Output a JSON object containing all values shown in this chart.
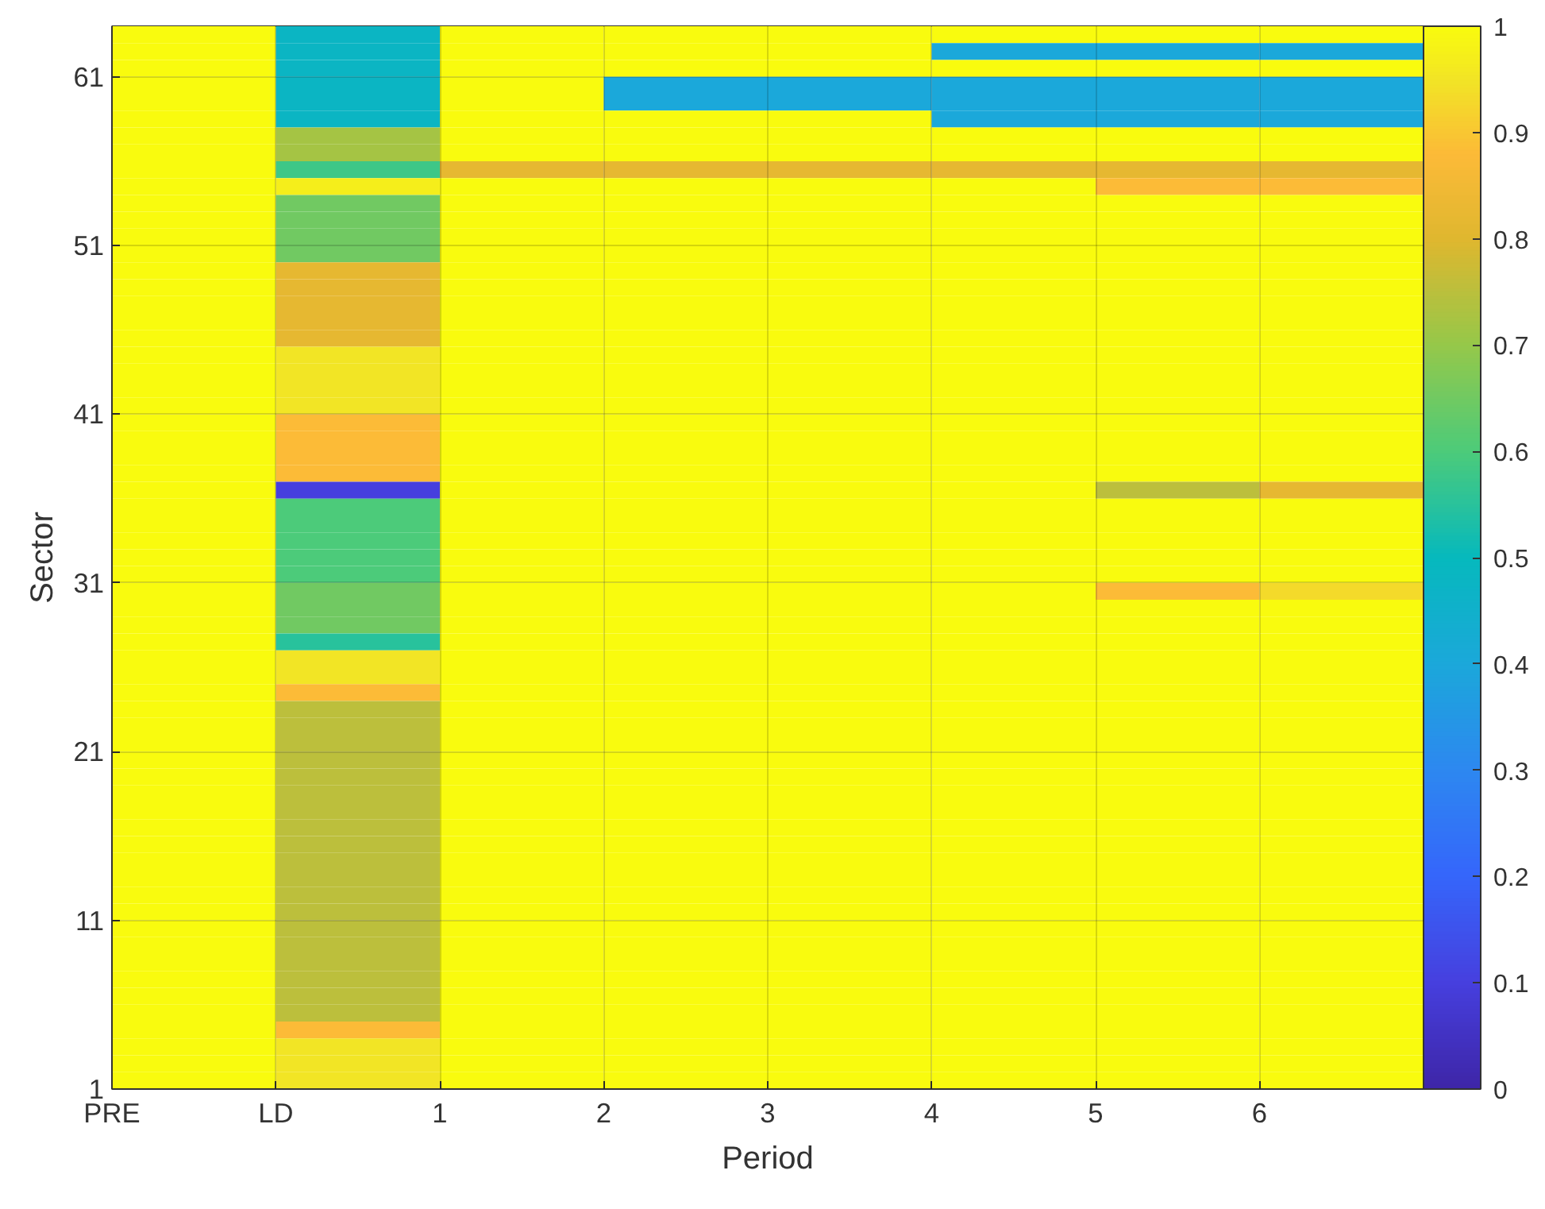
{
  "chart_data": {
    "type": "heatmap",
    "xlabel": "Period",
    "ylabel": "Sector",
    "xlim": [
      -1,
      7
    ],
    "xticks": [
      {
        "value": -1,
        "label": "PRE"
      },
      {
        "value": 0,
        "label": "LD"
      },
      1,
      2,
      3,
      4,
      5,
      6
    ],
    "ylim": [
      1,
      64
    ],
    "yticks": [
      1,
      11,
      21,
      31,
      41,
      51,
      61
    ],
    "clim": [
      0,
      1
    ],
    "cticks": [
      0,
      0.1,
      0.2,
      0.3,
      0.4,
      0.5,
      0.6,
      0.7,
      0.8,
      0.9,
      1
    ],
    "grid": true,
    "cells": [
      [
        1,
        0.48,
        1,
        1,
        1,
        1,
        1,
        1
      ],
      [
        1,
        0.48,
        1,
        1,
        1,
        0.4,
        0.4,
        0.4
      ],
      [
        1,
        0.48,
        1,
        1,
        1,
        1,
        1,
        1
      ],
      [
        1,
        0.48,
        1,
        0.4,
        0.4,
        0.4,
        0.4,
        0.4
      ],
      [
        1,
        0.48,
        1,
        0.4,
        0.4,
        0.4,
        0.4,
        0.4
      ],
      [
        1,
        0.48,
        1,
        1,
        1,
        0.4,
        0.4,
        0.4
      ],
      [
        1,
        0.72,
        1,
        1,
        1,
        1,
        1,
        1
      ],
      [
        1,
        0.72,
        1,
        1,
        1,
        1,
        1,
        1
      ],
      [
        1,
        0.58,
        0.82,
        0.82,
        0.82,
        0.82,
        0.82,
        0.82
      ],
      [
        1,
        0.97,
        1,
        1,
        1,
        1,
        0.88,
        0.88
      ],
      [
        1,
        0.65,
        1,
        1,
        1,
        1,
        1,
        1
      ],
      [
        1,
        0.65,
        1,
        1,
        1,
        1,
        1,
        1
      ],
      [
        1,
        0.65,
        1,
        1,
        1,
        1,
        1,
        1
      ],
      [
        1,
        0.65,
        1,
        1,
        1,
        1,
        1,
        1
      ],
      [
        1,
        0.82,
        1,
        1,
        1,
        1,
        1,
        1
      ],
      [
        1,
        0.82,
        1,
        1,
        1,
        1,
        1,
        1
      ],
      [
        1,
        0.82,
        1,
        1,
        1,
        1,
        1,
        1
      ],
      [
        1,
        0.82,
        1,
        1,
        1,
        1,
        1,
        1
      ],
      [
        1,
        0.82,
        1,
        1,
        1,
        1,
        1,
        1
      ],
      [
        1,
        0.95,
        1,
        1,
        1,
        1,
        1,
        1
      ],
      [
        1,
        0.95,
        1,
        1,
        1,
        1,
        1,
        1
      ],
      [
        1,
        0.95,
        1,
        1,
        1,
        1,
        1,
        1
      ],
      [
        1,
        0.95,
        1,
        1,
        1,
        1,
        1,
        1
      ],
      [
        1,
        0.88,
        1,
        1,
        1,
        1,
        1,
        1
      ],
      [
        1,
        0.88,
        1,
        1,
        1,
        1,
        1,
        1
      ],
      [
        1,
        0.88,
        1,
        1,
        1,
        1,
        1,
        1
      ],
      [
        1,
        0.88,
        1,
        1,
        1,
        1,
        1,
        1
      ],
      [
        1,
        0.1,
        1,
        1,
        1,
        1,
        0.75,
        0.82
      ],
      [
        1,
        0.6,
        1,
        1,
        1,
        1,
        1,
        1
      ],
      [
        1,
        0.6,
        1,
        1,
        1,
        1,
        1,
        1
      ],
      [
        1,
        0.6,
        1,
        1,
        1,
        1,
        1,
        1
      ],
      [
        1,
        0.6,
        1,
        1,
        1,
        1,
        1,
        1
      ],
      [
        1,
        0.6,
        1,
        1,
        1,
        1,
        1,
        1
      ],
      [
        1,
        0.65,
        1,
        1,
        1,
        1,
        0.88,
        0.93
      ],
      [
        1,
        0.65,
        1,
        1,
        1,
        1,
        1,
        1
      ],
      [
        1,
        0.65,
        1,
        1,
        1,
        1,
        1,
        1
      ],
      [
        1,
        0.55,
        1,
        1,
        1,
        1,
        1,
        1
      ],
      [
        1,
        0.95,
        1,
        1,
        1,
        1,
        1,
        1
      ],
      [
        1,
        0.95,
        1,
        1,
        1,
        1,
        1,
        1
      ],
      [
        1,
        0.88,
        1,
        1,
        1,
        1,
        1,
        1
      ],
      [
        1,
        0.75,
        1,
        1,
        1,
        1,
        1,
        1
      ],
      [
        1,
        0.75,
        1,
        1,
        1,
        1,
        1,
        1
      ],
      [
        1,
        0.75,
        1,
        1,
        1,
        1,
        1,
        1
      ],
      [
        1,
        0.75,
        1,
        1,
        1,
        1,
        1,
        1
      ],
      [
        1,
        0.75,
        1,
        1,
        1,
        1,
        1,
        1
      ],
      [
        1,
        0.75,
        1,
        1,
        1,
        1,
        1,
        1
      ],
      [
        1,
        0.75,
        1,
        1,
        1,
        1,
        1,
        1
      ],
      [
        1,
        0.75,
        1,
        1,
        1,
        1,
        1,
        1
      ],
      [
        1,
        0.75,
        1,
        1,
        1,
        1,
        1,
        1
      ],
      [
        1,
        0.75,
        1,
        1,
        1,
        1,
        1,
        1
      ],
      [
        1,
        0.75,
        1,
        1,
        1,
        1,
        1,
        1
      ],
      [
        1,
        0.75,
        1,
        1,
        1,
        1,
        1,
        1
      ],
      [
        1,
        0.75,
        1,
        1,
        1,
        1,
        1,
        1
      ],
      [
        1,
        0.75,
        1,
        1,
        1,
        1,
        1,
        1
      ],
      [
        1,
        0.75,
        1,
        1,
        1,
        1,
        1,
        1
      ],
      [
        1,
        0.75,
        1,
        1,
        1,
        1,
        1,
        1
      ],
      [
        1,
        0.75,
        1,
        1,
        1,
        1,
        1,
        1
      ],
      [
        1,
        0.75,
        1,
        1,
        1,
        1,
        1,
        1
      ],
      [
        1,
        0.75,
        1,
        1,
        1,
        1,
        1,
        1
      ],
      [
        1,
        0.88,
        1,
        1,
        1,
        1,
        1,
        1
      ],
      [
        1,
        0.95,
        1,
        1,
        1,
        1,
        1,
        1
      ],
      [
        1,
        0.95,
        1,
        1,
        1,
        1,
        1,
        1
      ],
      [
        1,
        0.95,
        1,
        1,
        1,
        1,
        1,
        1
      ]
    ]
  }
}
